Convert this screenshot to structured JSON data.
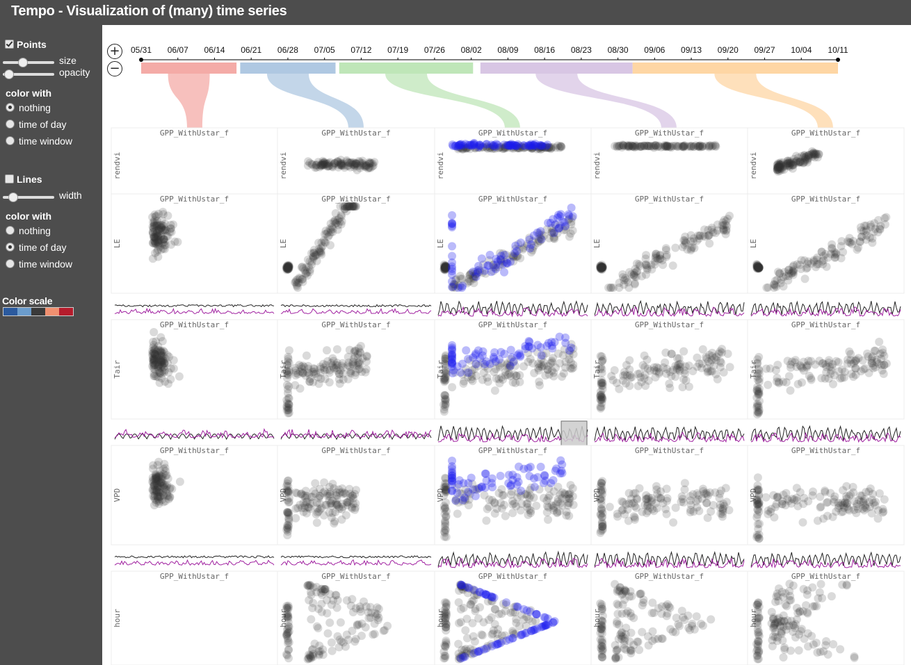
{
  "app": {
    "title": "Tempo - Visualization of (many) time series"
  },
  "sidebar": {
    "points": {
      "label": "Points",
      "checked": true,
      "size_label": "size",
      "opacity_label": "opacity",
      "size_value": 0.35,
      "opacity_value": 0.1
    },
    "points_color": {
      "heading": "color with",
      "options": [
        "nothing",
        "time of day",
        "time window"
      ],
      "selected": 0
    },
    "lines": {
      "label": "Lines",
      "checked": false,
      "width_label": "width",
      "width_value": 0.1
    },
    "lines_color": {
      "heading": "color with",
      "options": [
        "nothing",
        "time of day",
        "time window"
      ],
      "selected": 1
    },
    "color_scale": {
      "label": "Color scale",
      "colors": [
        "#2b5a9e",
        "#6b9ccc",
        "#3a3a3a",
        "#f09070",
        "#b51c2c"
      ]
    }
  },
  "timeline": {
    "zoom_in": "+",
    "zoom_out": "−",
    "ticks": [
      "05/31",
      "06/07",
      "06/14",
      "06/21",
      "06/28",
      "07/05",
      "07/12",
      "07/19",
      "07/26",
      "08/02",
      "08/09",
      "08/16",
      "08/23",
      "08/30",
      "09/06",
      "09/13",
      "09/20",
      "09/27",
      "10/04",
      "10/11"
    ],
    "windows": [
      {
        "color": "#f4aba7",
        "start": 0.0,
        "end": 2.6
      },
      {
        "color": "#afc8e2",
        "start": 2.7,
        "end": 5.3
      },
      {
        "color": "#bfe6b8",
        "start": 5.4,
        "end": 9.05
      },
      {
        "color": "#d8c6e4",
        "start": 9.25,
        "end": 13.4
      },
      {
        "color": "#fed6a4",
        "start": 13.4,
        "end": 19.0
      }
    ]
  },
  "grid": {
    "x_label": "GPP_WithUstar_f",
    "rows": [
      "rendvi",
      "LE",
      "Tair",
      "VPD",
      "hour"
    ],
    "colors": {
      "point": "#333333",
      "highlight": "#1a1aee",
      "line_dark": "#222222",
      "line_magenta": "#a020a0"
    }
  }
}
